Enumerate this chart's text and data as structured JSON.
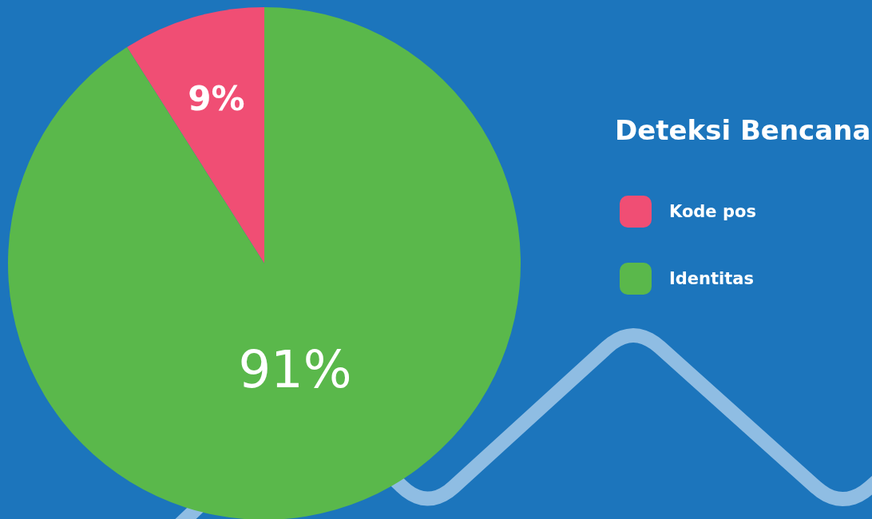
{
  "chart_data": {
    "type": "pie",
    "legend_title": "Deteksi Bencana",
    "categories": [
      "Kode pos",
      "Identitas"
    ],
    "values": [
      9,
      91
    ],
    "colors": [
      "#f04e74",
      "#5ab84b"
    ],
    "value_labels": [
      "9%",
      "91%"
    ],
    "legend": "right"
  }
}
